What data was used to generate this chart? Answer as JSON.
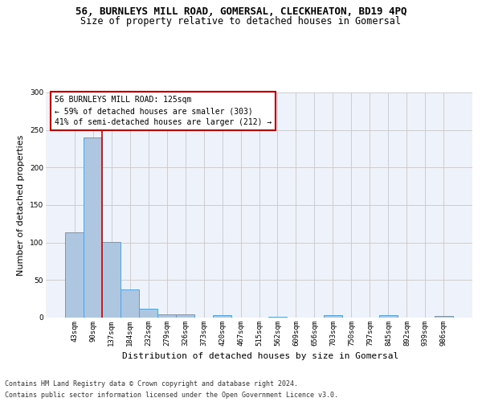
{
  "title": "56, BURNLEYS MILL ROAD, GOMERSAL, CLECKHEATON, BD19 4PQ",
  "subtitle": "Size of property relative to detached houses in Gomersal",
  "xlabel": "Distribution of detached houses by size in Gomersal",
  "ylabel": "Number of detached properties",
  "bar_color": "#aec6df",
  "bar_edge_color": "#5a9fd4",
  "categories": [
    "43sqm",
    "90sqm",
    "137sqm",
    "184sqm",
    "232sqm",
    "279sqm",
    "326sqm",
    "373sqm",
    "420sqm",
    "467sqm",
    "515sqm",
    "562sqm",
    "609sqm",
    "656sqm",
    "703sqm",
    "750sqm",
    "797sqm",
    "845sqm",
    "892sqm",
    "939sqm",
    "986sqm"
  ],
  "values": [
    114,
    240,
    101,
    37,
    12,
    4,
    4,
    0,
    3,
    0,
    0,
    1,
    0,
    0,
    3,
    0,
    0,
    3,
    0,
    0,
    2
  ],
  "ylim": [
    0,
    300
  ],
  "yticks": [
    0,
    50,
    100,
    150,
    200,
    250,
    300
  ],
  "vline_x": 1.5,
  "vline_color": "#cc0000",
  "annotation_text": "56 BURNLEYS MILL ROAD: 125sqm\n← 59% of detached houses are smaller (303)\n41% of semi-detached houses are larger (212) →",
  "annotation_box_color": "#ffffff",
  "annotation_box_edgecolor": "#cc0000",
  "footer_line1": "Contains HM Land Registry data © Crown copyright and database right 2024.",
  "footer_line2": "Contains public sector information licensed under the Open Government Licence v3.0.",
  "background_color": "#eef2fa",
  "grid_color": "#c8c8c8",
  "title_fontsize": 9,
  "subtitle_fontsize": 8.5,
  "xlabel_fontsize": 8,
  "ylabel_fontsize": 8,
  "annot_fontsize": 7,
  "tick_fontsize": 6.5,
  "footer_fontsize": 6
}
